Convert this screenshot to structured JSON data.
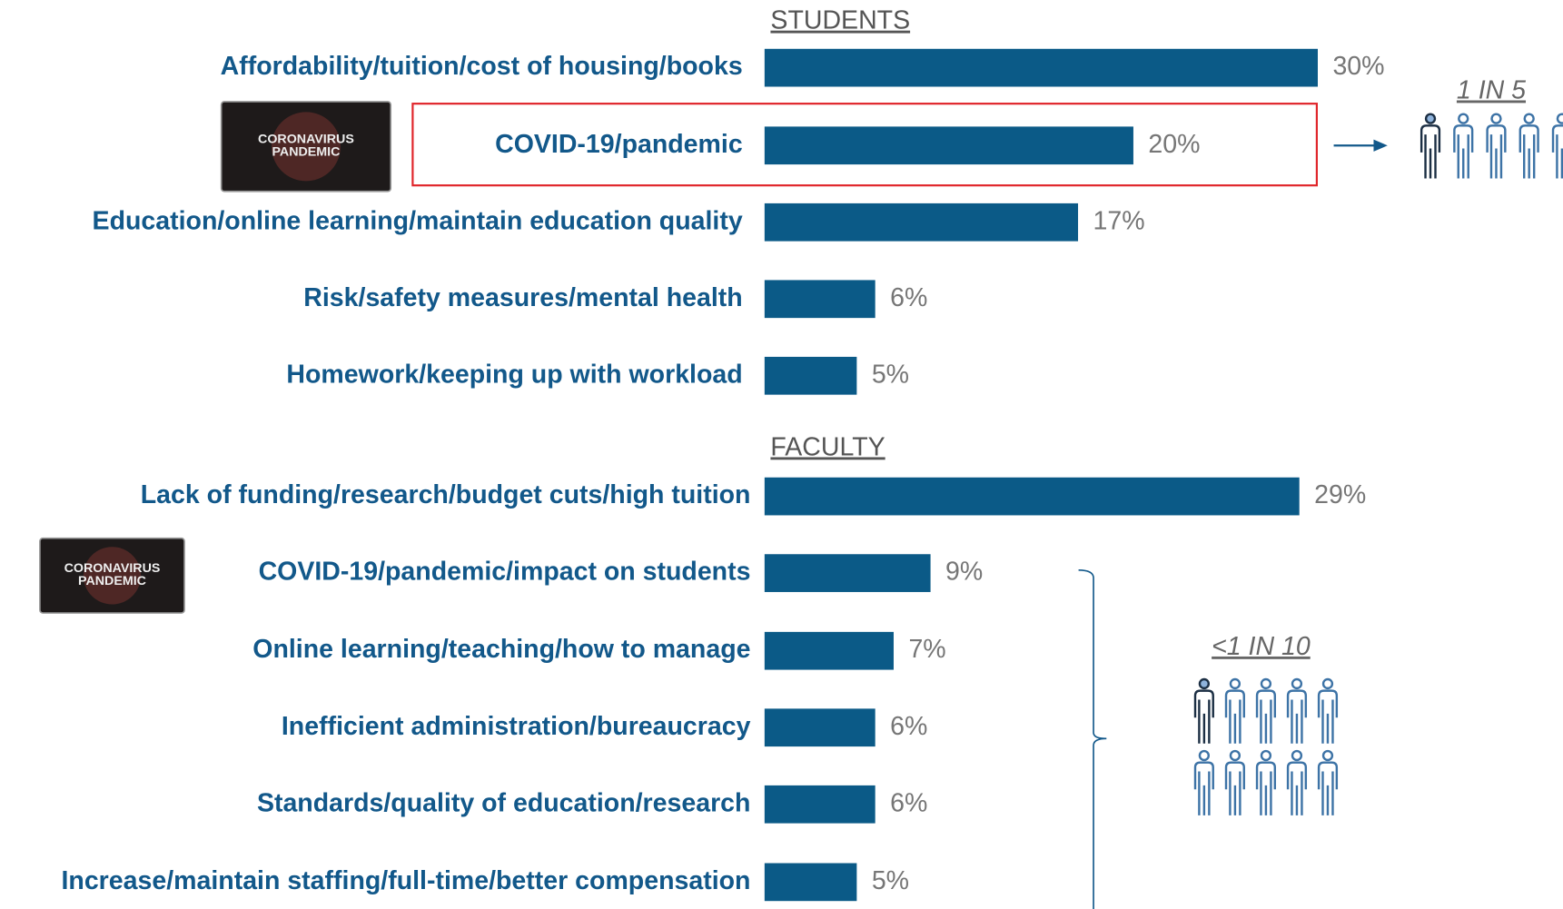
{
  "chart_data": [
    {
      "type": "bar",
      "title": "STUDENTS",
      "categories": [
        "Affordability/tuition/cost of housing/books",
        "COVID-19/pandemic",
        "Education/online learning/maintain education quality",
        "Risk/safety measures/mental health",
        "Homework/keeping up with workload"
      ],
      "values": [
        30,
        20,
        17,
        6,
        5
      ],
      "value_labels": [
        "30%",
        "20%",
        "17%",
        "6%",
        "5%"
      ],
      "color": "#0b5a87",
      "callout": "1 IN 5",
      "badge": [
        "CORONAVIRUS",
        "PANDEMIC"
      ]
    },
    {
      "type": "bar",
      "title": "FACULTY",
      "categories": [
        "Lack of funding/research/budget cuts/high tuition",
        "COVID-19/pandemic/impact on students",
        "Online learning/teaching/how to manage",
        "Inefficient administration/bureaucracy",
        "Standards/quality of education/research",
        "Increase/maintain staffing/full-time/better compensation"
      ],
      "values": [
        29,
        9,
        7,
        6,
        6,
        5
      ],
      "value_labels": [
        "29%",
        "9%",
        "7%",
        "6%",
        "6%",
        "5%"
      ],
      "color": "#0b5a87",
      "callout": "<1 IN 10",
      "badge": [
        "CORONAVIRUS",
        "PANDEMIC"
      ]
    }
  ]
}
